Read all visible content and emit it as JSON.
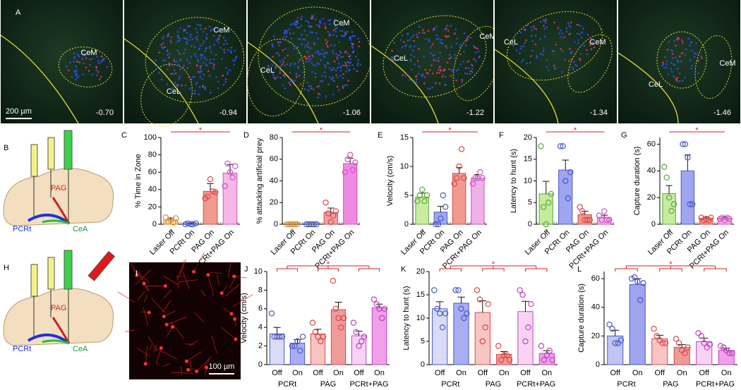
{
  "panel_a": {
    "letter": "A",
    "scale_bar": "200 µm",
    "slices": [
      {
        "coord": "-0.70",
        "regions": [
          "CeM"
        ]
      },
      {
        "coord": "-0.94",
        "regions": [
          "CeM",
          "CeL"
        ]
      },
      {
        "coord": "-1.06",
        "regions": [
          "CeM",
          "CeL"
        ]
      },
      {
        "coord": "-1.22",
        "regions": [
          "CeL",
          "CeM"
        ]
      },
      {
        "coord": "-1.34",
        "regions": [
          "CeL",
          "CeM"
        ]
      },
      {
        "coord": "-1.46",
        "regions": [
          "CeL",
          "CeM"
        ]
      }
    ]
  },
  "panel_b": {
    "letter": "B",
    "labels": [
      "PAG",
      "PCRt",
      "CeA"
    ]
  },
  "panel_h": {
    "letter": "H",
    "labels": [
      "PAG",
      "PCRt",
      "CeA"
    ]
  },
  "panel_i": {
    "letter": "I",
    "scale_bar": "100 µm"
  },
  "chart_data": [
    {
      "type": "bar",
      "panel": "C",
      "ylabel": "% Time in Zone",
      "significance": "*",
      "rotated_labels": true,
      "categories": [
        "Laser Off",
        "PCRt On",
        "PAG On",
        "PCRt+PAG On"
      ],
      "values": [
        5,
        0.5,
        38,
        59
      ],
      "errors": [
        2,
        0.5,
        9,
        10
      ],
      "points": [
        [
          8,
          3,
          5,
          2,
          7
        ],
        [
          0,
          1,
          0,
          0,
          1
        ],
        [
          30,
          32,
          52,
          38,
          37
        ],
        [
          44,
          70,
          60,
          54,
          67
        ]
      ],
      "colors": [
        "#f9d9a8",
        "#c8cff5",
        "#f29a8f",
        "#f7b8e8"
      ],
      "edge_colors": [
        "#e08a30",
        "#4a58c8",
        "#d84848",
        "#d050c0"
      ],
      "ylim": [
        0,
        100
      ],
      "yticks": [
        0,
        20,
        40,
        60,
        80,
        100
      ]
    },
    {
      "type": "bar",
      "panel": "D",
      "ylabel": "% attacking artificial prey",
      "significance": "*",
      "rotated_labels": true,
      "categories": [
        "Laser Off",
        "PCRt On",
        "PAG On",
        "PCRt+PAG On"
      ],
      "values": [
        0,
        0,
        11,
        56
      ],
      "errors": [
        0,
        0,
        4,
        5
      ],
      "points": [
        [
          0,
          0,
          0,
          0,
          0
        ],
        [
          0,
          0,
          0,
          0,
          0
        ],
        [
          20,
          10,
          2,
          8,
          12
        ],
        [
          48,
          60,
          64,
          50,
          57
        ]
      ],
      "colors": [
        "#f9d9a8",
        "#c8cff5",
        "#f3a0a0",
        "#f089e0"
      ],
      "edge_colors": [
        "#e08a30",
        "#4a58c8",
        "#d84848",
        "#d050c0"
      ],
      "ylim": [
        0,
        80
      ],
      "yticks": [
        0,
        20,
        40,
        60,
        80
      ]
    },
    {
      "type": "bar",
      "panel": "E",
      "ylabel": "Velocity (cm/s)",
      "significance": "*",
      "rotated_labels": true,
      "categories": [
        "Laser Off",
        "PCRt On",
        "PAG On",
        "PCRt+PAG On"
      ],
      "values": [
        4.7,
        2.1,
        8.8,
        8.0
      ],
      "errors": [
        0.7,
        1,
        1,
        0.6
      ],
      "points": [
        [
          4,
          5,
          6,
          4,
          5
        ],
        [
          0,
          0,
          1,
          5,
          3
        ],
        [
          7,
          8,
          10,
          13,
          8
        ],
        [
          7,
          8,
          8,
          9,
          8
        ]
      ],
      "colors": [
        "#c9ec9e",
        "#9ea6f0",
        "#f29a8f",
        "#f0b0e8"
      ],
      "edge_colors": [
        "#58a838",
        "#4a58c8",
        "#d84848",
        "#d050c0"
      ],
      "ylim": [
        0,
        15
      ],
      "yticks": [
        0,
        5,
        10,
        15
      ]
    },
    {
      "type": "bar",
      "panel": "F",
      "ylabel": "Latency to hunt (s)",
      "significance": "*",
      "rotated_labels": true,
      "categories": [
        "Laser Off",
        "PCRt On",
        "PAG On",
        "PCRt+PAG On"
      ],
      "values": [
        7,
        12.5,
        2.2,
        1.6
      ],
      "errors": [
        2.9,
        2.3,
        0.8,
        0.5
      ],
      "points": [
        [
          18,
          4,
          0,
          5,
          7
        ],
        [
          18,
          18,
          10,
          6,
          12
        ],
        [
          4,
          3,
          1,
          1,
          1
        ],
        [
          2,
          1,
          3,
          1,
          1
        ]
      ],
      "colors": [
        "#c5ec9e",
        "#9ea6f0",
        "#f29a8f",
        "#f0b0e8"
      ],
      "edge_colors": [
        "#58a838",
        "#4a58c8",
        "#d84848",
        "#d050c0"
      ],
      "ylim": [
        0,
        20
      ],
      "yticks": [
        0,
        5,
        10,
        15,
        20
      ]
    },
    {
      "type": "bar",
      "panel": "G",
      "ylabel": "Capture duration (s)",
      "significance": "*",
      "rotated_labels": true,
      "categories": [
        "Laser Off",
        "PCRt On",
        "PAG On",
        "PCRt+PAG On"
      ],
      "values": [
        23,
        40,
        4.5,
        4.5
      ],
      "errors": [
        6,
        12,
        1,
        1
      ],
      "points": [
        [
          43,
          35,
          20,
          10,
          15
        ],
        [
          60,
          60,
          50,
          15,
          15
        ],
        [
          5,
          3,
          4,
          3,
          5
        ],
        [
          4,
          5,
          3,
          5,
          4
        ]
      ],
      "colors": [
        "#c5ec9e",
        "#9ea6f0",
        "#f29a8f",
        "#f0b0e8"
      ],
      "edge_colors": [
        "#58a838",
        "#4a58c8",
        "#d84848",
        "#d050c0"
      ],
      "ylim": [
        0,
        65
      ],
      "yticks": [
        0,
        20,
        40,
        60
      ]
    },
    {
      "type": "bar",
      "panel": "J",
      "ylabel": "Velocity (cm/s)",
      "significance": "*",
      "rotated_labels": false,
      "categories": [
        "Off",
        "On",
        "Off",
        "On",
        "Off",
        "On"
      ],
      "groups": [
        "PCRt",
        "PAG",
        "PCRt+PAG"
      ],
      "values": [
        3.3,
        2.3,
        3.3,
        5.9,
        3.1,
        6.1
      ],
      "errors": [
        0.7,
        0.4,
        0.5,
        0.8,
        0.5,
        0.4
      ],
      "points": [
        [
          5.5,
          3,
          3,
          3,
          3
        ],
        [
          2,
          2,
          2.5,
          1.5,
          3
        ],
        [
          4.5,
          3.5,
          3,
          2.5,
          3
        ],
        [
          9,
          6,
          5,
          4,
          5
        ],
        [
          4.5,
          3.5,
          2,
          2.5,
          3
        ],
        [
          7,
          6.5,
          6,
          5,
          6
        ]
      ],
      "colors": [
        "#d8dcf8",
        "#a8aef0",
        "#f8c4c4",
        "#f09a9a",
        "#f8d4f2",
        "#f0a0e8"
      ],
      "edge_colors": [
        "#4a58c8",
        "#4a58c8",
        "#d84848",
        "#d84848",
        "#c040c0",
        "#c040c0"
      ],
      "ylim": [
        0,
        10
      ],
      "yticks": [
        0,
        2,
        4,
        6,
        8,
        10
      ]
    },
    {
      "type": "bar",
      "panel": "K",
      "ylabel": "Latency to hunt (s)",
      "significance": "*",
      "rotated_labels": false,
      "categories": [
        "Off",
        "On",
        "Off",
        "On",
        "Off",
        "On"
      ],
      "groups": [
        "PCRt",
        "PAG",
        "PCRt+PAG"
      ],
      "values": [
        12,
        13.2,
        11.2,
        2.2,
        11.4,
        2.4
      ],
      "errors": [
        1.5,
        1.3,
        2.5,
        0.6,
        2.2,
        0.6
      ],
      "points": [
        [
          16,
          12,
          11,
          8,
          11
        ],
        [
          16,
          16,
          12,
          10,
          11
        ],
        [
          16,
          14,
          5,
          8,
          13
        ],
        [
          4,
          1,
          2,
          2,
          1
        ],
        [
          16,
          15,
          5,
          8,
          13
        ],
        [
          4,
          1,
          2,
          3,
          1
        ]
      ],
      "colors": [
        "#d8dcf8",
        "#a8aef0",
        "#f8c4c4",
        "#f09a9a",
        "#f8d4f2",
        "#f0a0e8"
      ],
      "edge_colors": [
        "#4a58c8",
        "#4a58c8",
        "#d84848",
        "#d84848",
        "#c040c0",
        "#c040c0"
      ],
      "ylim": [
        0,
        20
      ],
      "yticks": [
        0,
        5,
        10,
        15,
        20
      ]
    },
    {
      "type": "bar",
      "panel": "L",
      "ylabel": "Capture duration (s)",
      "significance": "*",
      "rotated_labels": false,
      "categories": [
        "Off",
        "On",
        "Off",
        "On",
        "Off",
        "On"
      ],
      "groups": [
        "PCRt",
        "PAG",
        "PCRt+PAG"
      ],
      "values": [
        20,
        56,
        18,
        12,
        16,
        10
      ],
      "errors": [
        4,
        4,
        2.5,
        2,
        2.5,
        1.5
      ],
      "points": [
        [
          28,
          25,
          15,
          15,
          17
        ],
        [
          60,
          61,
          58,
          45,
          57
        ],
        [
          25,
          20,
          17,
          15,
          15
        ],
        [
          18,
          15,
          10,
          8,
          12
        ],
        [
          22,
          20,
          15,
          12,
          14
        ],
        [
          13,
          12,
          10,
          8,
          8
        ]
      ],
      "colors": [
        "#c0c6f4",
        "#9ea4ee",
        "#f8c4c4",
        "#f09a9a",
        "#f8d4f2",
        "#f0a0e8"
      ],
      "edge_colors": [
        "#4a58c8",
        "#4a58c8",
        "#d84848",
        "#d84848",
        "#c040c0",
        "#c040c0"
      ],
      "ylim": [
        0,
        65
      ],
      "yticks": [
        0,
        20,
        40,
        60
      ]
    }
  ]
}
